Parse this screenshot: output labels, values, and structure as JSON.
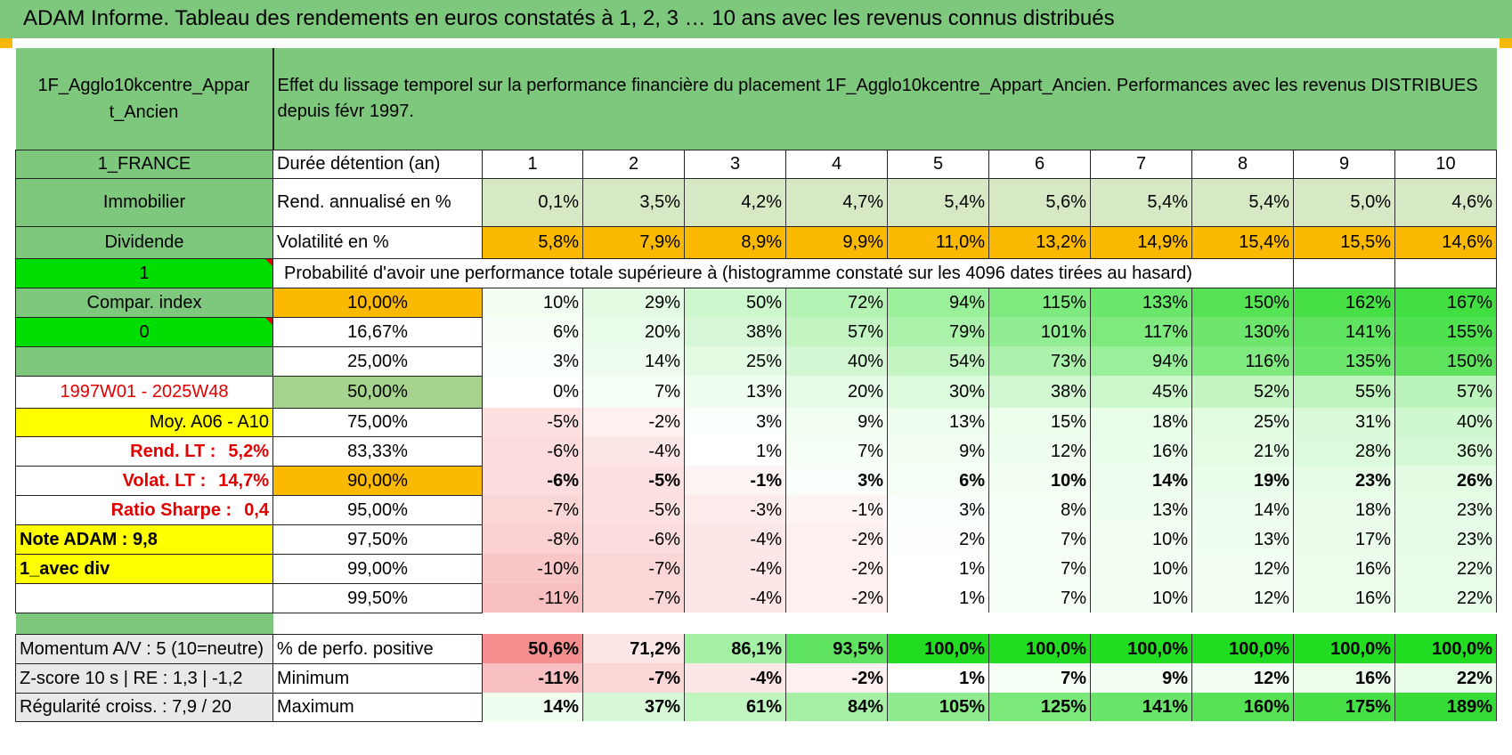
{
  "title": "ADAM Informe. Tableau des rendements en euros constatés à 1, 2, 3 … 10 ans avec les revenus connus distribués",
  "asset_name_1": "1F_Agglo10kcentre_Appar",
  "asset_name_2": "t_Ancien",
  "description": "Effet du lissage temporel sur la performance financière du placement 1F_Agglo10kcentre_Appart_Ancien. Performances avec les revenus DISTRIBUES depuis févr 1997.",
  "left": {
    "country": "1_FRANCE",
    "category": "Immobilier",
    "dividend": "Dividende",
    "flag1": "1",
    "compar_index": "Compar. index",
    "flag0": "0",
    "period": "1997W01 - 2025W48",
    "moy": "Moy. A06 - A10",
    "rend_lt_label": "Rend. LT :",
    "rend_lt_value": "5,2%",
    "volat_lt_label": "Volat. LT :",
    "volat_lt_value": "14,7%",
    "sharpe_label": "Ratio Sharpe :",
    "sharpe_value": "0,4",
    "note_adam": "Note ADAM : 9,8",
    "avec_div": "1_avec div",
    "momentum": "Momentum A/V : 5 (10=neutre)",
    "zscore": "Z-score 10 s | RE : 1,3 | -1,2",
    "regularite": "Régularité croiss. : 7,9 / 20"
  },
  "header": {
    "duree_label": "Durée détention (an)",
    "years": [
      "1",
      "2",
      "3",
      "4",
      "5",
      "6",
      "7",
      "8",
      "9",
      "10"
    ]
  },
  "rend": {
    "label": "Rend. annualisé en %",
    "values": [
      "0,1%",
      "3,5%",
      "4,2%",
      "4,7%",
      "5,4%",
      "5,6%",
      "5,4%",
      "5,4%",
      "5,0%",
      "4,6%"
    ]
  },
  "vol": {
    "label": "Volatilité en %",
    "values": [
      "5,8%",
      "7,9%",
      "8,9%",
      "9,9%",
      "11,0%",
      "13,2%",
      "14,9%",
      "15,4%",
      "15,5%",
      "14,6%"
    ]
  },
  "prob_title": "Probabilité d'avoir une performance totale supérieure à (histogramme constaté sur les 4096 dates tirées au hasard)",
  "prob_rows": [
    {
      "label": "10,00%",
      "values": [
        "10%",
        "29%",
        "50%",
        "72%",
        "94%",
        "115%",
        "133%",
        "150%",
        "162%",
        "167%"
      ]
    },
    {
      "label": "16,67%",
      "values": [
        "6%",
        "20%",
        "38%",
        "57%",
        "79%",
        "101%",
        "117%",
        "130%",
        "141%",
        "155%"
      ]
    },
    {
      "label": "25,00%",
      "values": [
        "3%",
        "14%",
        "25%",
        "40%",
        "54%",
        "73%",
        "94%",
        "116%",
        "135%",
        "150%"
      ]
    },
    {
      "label": "50,00%",
      "values": [
        "0%",
        "7%",
        "13%",
        "20%",
        "30%",
        "38%",
        "45%",
        "52%",
        "55%",
        "57%"
      ]
    },
    {
      "label": "75,00%",
      "values": [
        "-5%",
        "-2%",
        "3%",
        "9%",
        "13%",
        "15%",
        "18%",
        "25%",
        "31%",
        "40%"
      ]
    },
    {
      "label": "83,33%",
      "values": [
        "-6%",
        "-4%",
        "1%",
        "7%",
        "9%",
        "12%",
        "16%",
        "21%",
        "28%",
        "36%"
      ]
    },
    {
      "label": "90,00%",
      "values": [
        "-6%",
        "-5%",
        "-1%",
        "3%",
        "6%",
        "10%",
        "14%",
        "19%",
        "23%",
        "26%"
      ]
    },
    {
      "label": "95,00%",
      "values": [
        "-7%",
        "-5%",
        "-3%",
        "-1%",
        "3%",
        "8%",
        "13%",
        "14%",
        "18%",
        "23%"
      ]
    },
    {
      "label": "97,50%",
      "values": [
        "-8%",
        "-6%",
        "-4%",
        "-2%",
        "2%",
        "7%",
        "10%",
        "13%",
        "17%",
        "23%"
      ]
    },
    {
      "label": "99,00%",
      "values": [
        "-10%",
        "-7%",
        "-4%",
        "-2%",
        "1%",
        "7%",
        "10%",
        "12%",
        "16%",
        "22%"
      ]
    },
    {
      "label": "99,50%",
      "values": [
        "-11%",
        "-7%",
        "-4%",
        "-2%",
        "1%",
        "7%",
        "10%",
        "12%",
        "16%",
        "22%"
      ]
    }
  ],
  "pos": {
    "label": "% de perfo. positive",
    "values": [
      "50,6%",
      "71,2%",
      "86,1%",
      "93,5%",
      "100,0%",
      "100,0%",
      "100,0%",
      "100,0%",
      "100,0%",
      "100,0%"
    ]
  },
  "min": {
    "label": "Minimum",
    "values": [
      "-11%",
      "-7%",
      "-4%",
      "-2%",
      "1%",
      "7%",
      "9%",
      "12%",
      "16%",
      "22%"
    ]
  },
  "max": {
    "label": "Maximum",
    "values": [
      "14%",
      "37%",
      "61%",
      "84%",
      "105%",
      "125%",
      "141%",
      "160%",
      "175%",
      "189%"
    ]
  },
  "colors": {
    "green_header": "#7ec87e",
    "bright_green": "#00dd00",
    "yellow": "#ffff00",
    "orange": "#fbb901",
    "red_text": "#e00000"
  }
}
